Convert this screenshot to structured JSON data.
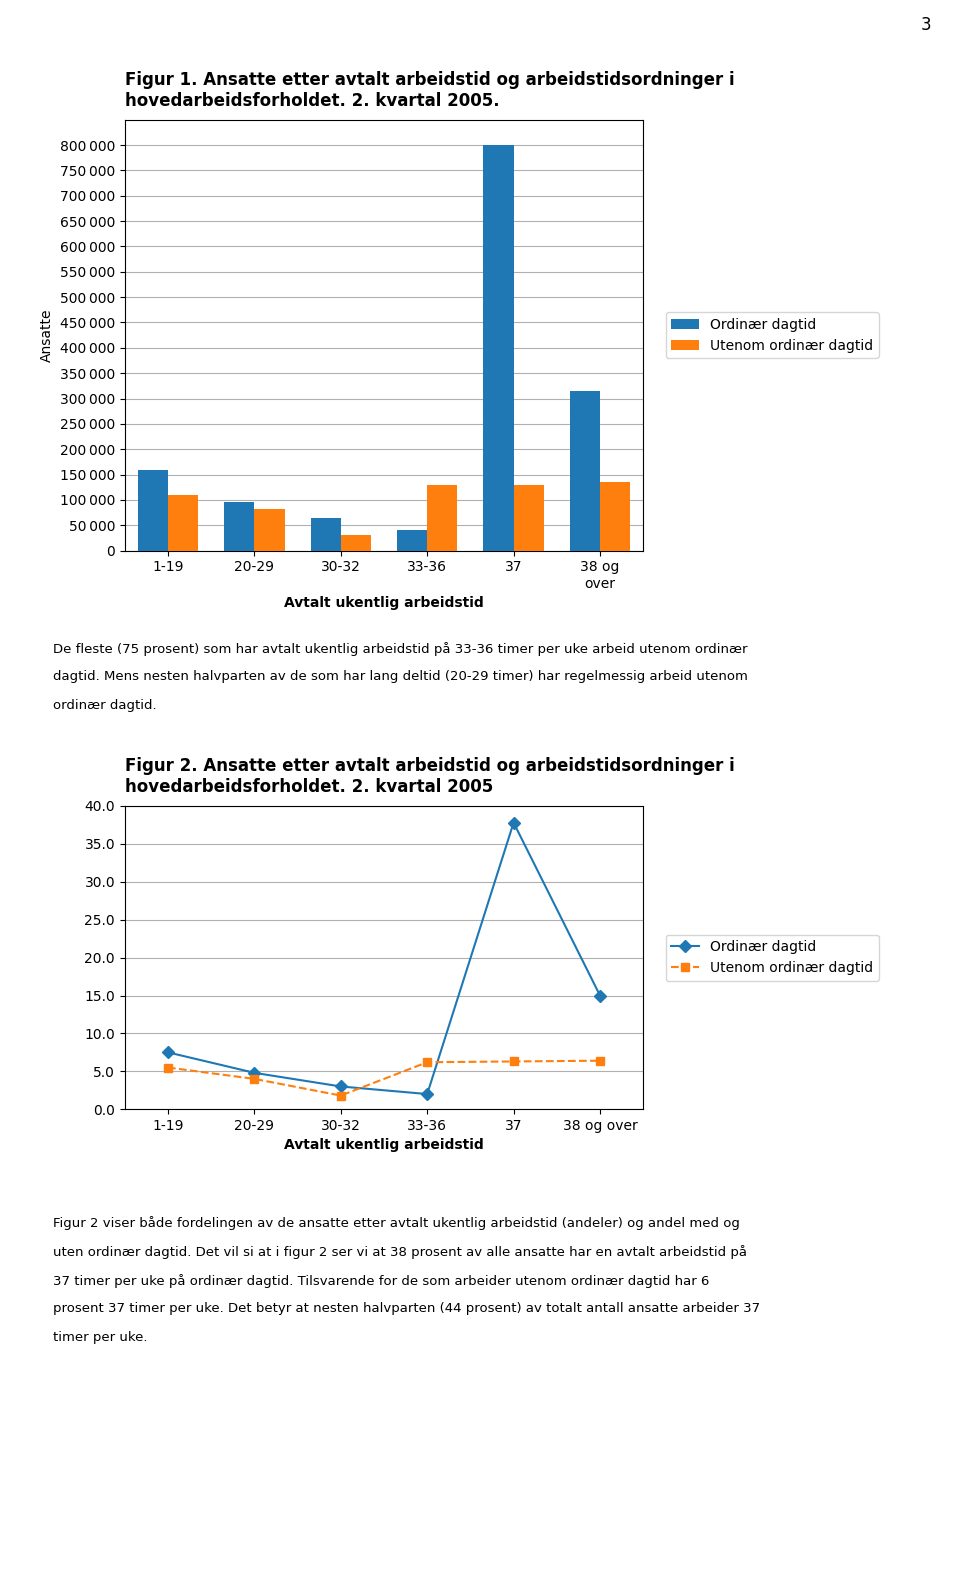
{
  "page_number": "3",
  "chart_data": [
    {
      "type": "bar",
      "title": "Figur 1. Ansatte etter avtalt arbeidstid og arbeidstidsordninger i\nhovedarbeidsforholdet. 2. kvartal 2005.",
      "xlabel": "Avtalt ukentlig arbeidstid",
      "ylabel": "Ansatte",
      "categories": [
        "1-19",
        "20-29",
        "30-32",
        "33-36",
        "37",
        "38 og\nover"
      ],
      "series": [
        {
          "name": "Ordinær dagtid",
          "values": [
            160000,
            95000,
            65000,
            40000,
            800000,
            315000
          ]
        },
        {
          "name": "Utenom ordinær dagtid",
          "values": [
            110000,
            82000,
            30000,
            130000,
            130000,
            135000
          ]
        }
      ],
      "ylim": [
        0,
        850000
      ],
      "yticks": [
        0,
        {
          "value": 50000,
          "label": "50 000"
        },
        {
          "value": 100000,
          "label": "100 000"
        },
        {
          "value": 150000,
          "label": "150 000"
        },
        {
          "value": 200000,
          "label": "200 000"
        },
        {
          "value": 250000,
          "label": "250 000"
        },
        {
          "value": 300000,
          "label": "300 000"
        },
        {
          "value": 350000,
          "label": "350 000"
        },
        {
          "value": 400000,
          "label": "400 000"
        },
        {
          "value": 450000,
          "label": "450 000"
        },
        {
          "value": 500000,
          "label": "500 000"
        },
        {
          "value": 550000,
          "label": "550 000"
        },
        {
          "value": 600000,
          "label": "600 000"
        },
        {
          "value": 650000,
          "label": "650 000"
        },
        {
          "value": 700000,
          "label": "700 000"
        },
        {
          "value": 750000,
          "label": "750 000"
        },
        {
          "value": 800000,
          "label": "800 000"
        }
      ],
      "grid": true,
      "legend": "center left",
      "annotations": [
        "De fleste (75 prosent) som har avtalt ukentlig arbeidstid på 33-36 timer per uke arbeid utenom ordinær",
        "dagtid. Mens nesten halvparten av de som har lang deltid (20-29 timer) har regelmessig arbeid utenom",
        "ordinær dagtid."
      ]
    },
    {
      "type": "line",
      "title": "Figur 2. Ansatte etter avtalt arbeidstid og arbeidstidsordninger i\nhovedarbeidsforholdet. 2. kvartal 2005",
      "xlabel": "Avtalt ukentlig arbeidstid",
      "categories": [
        "1-19",
        "20-29",
        "30-32",
        "33-36",
        "37",
        "38 og over"
      ],
      "series": [
        {
          "name": "Ordinær dagtid",
          "values": [
            7.5,
            4.8,
            3.0,
            2.0,
            37.8,
            15.0
          ],
          "marker": "D",
          "line_style": "solid"
        },
        {
          "name": "Utenom ordinær dagtid",
          "values": [
            5.5,
            4.0,
            1.8,
            6.2,
            6.3,
            6.4
          ],
          "marker": "s",
          "line_style": "dashed"
        }
      ],
      "ylim": [
        0,
        40
      ],
      "yticks": [
        {
          "value": 0,
          "label": "0.0"
        },
        {
          "value": 5,
          "label": "5.0"
        },
        {
          "value": 10,
          "label": "10.0"
        },
        {
          "value": 15,
          "label": "15.0"
        },
        {
          "value": 20,
          "label": "20.0"
        },
        {
          "value": 25,
          "label": "25.0"
        },
        {
          "value": 30,
          "label": "30.0"
        },
        {
          "value": 35,
          "label": "35.0"
        },
        {
          "value": 40,
          "label": "40.0"
        }
      ],
      "grid": true,
      "legend": "center left",
      "annotations": [
        "Figur 2 viser både fordelingen av de ansatte etter avtalt ukentlig arbeidstid (andeler) og andel med og",
        "uten ordinær dagtid. Det vil si at i figur 2 ser vi at 38 prosent av alle ansatte har en avtalt arbeidstid på",
        "37 timer per uke på ordinær dagtid. Tilsvarende for de som arbeider utenom ordinær dagtid har 6",
        "prosent 37 timer per uke. Det betyr at nesten halvparten (44 prosent) av totalt antall ansatte arbeider 37",
        "timer per uke."
      ]
    }
  ]
}
